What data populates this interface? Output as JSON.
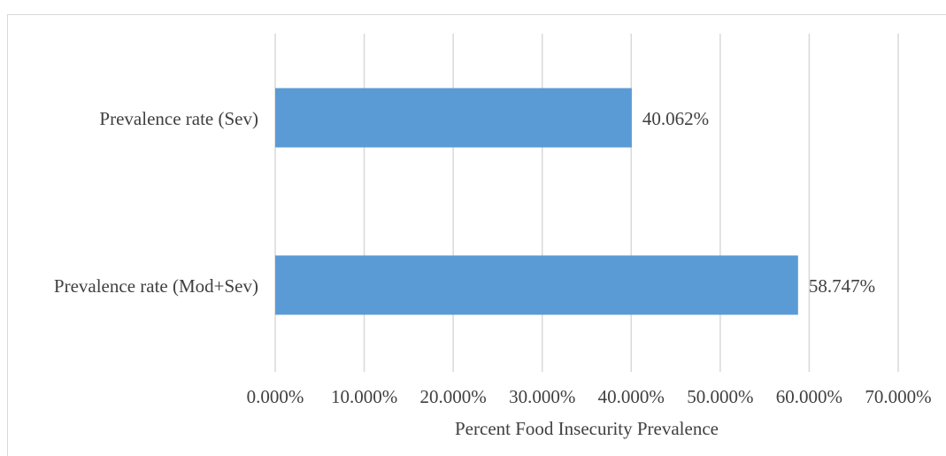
{
  "chart_data": {
    "type": "bar",
    "orientation": "horizontal",
    "categories": [
      "Prevalence rate (Sev)",
      "Prevalence rate (Mod+Sev)"
    ],
    "values": [
      40.062,
      58.747
    ],
    "data_labels": [
      "40.062%",
      "58.747%"
    ],
    "xlabel": "Percent Food Insecurity Prevalence",
    "ylabel": "",
    "xlim": [
      0,
      70
    ],
    "x_ticks": [
      0,
      10,
      20,
      30,
      40,
      50,
      60,
      70
    ],
    "x_tick_labels": [
      "0.000%",
      "10.000%",
      "20.000%",
      "30.000%",
      "40.000%",
      "50.000%",
      "60.000%",
      "70.000%"
    ],
    "grid": "vertical",
    "bar_color": "#5b9bd5",
    "grid_color": "#d9d9d9"
  }
}
